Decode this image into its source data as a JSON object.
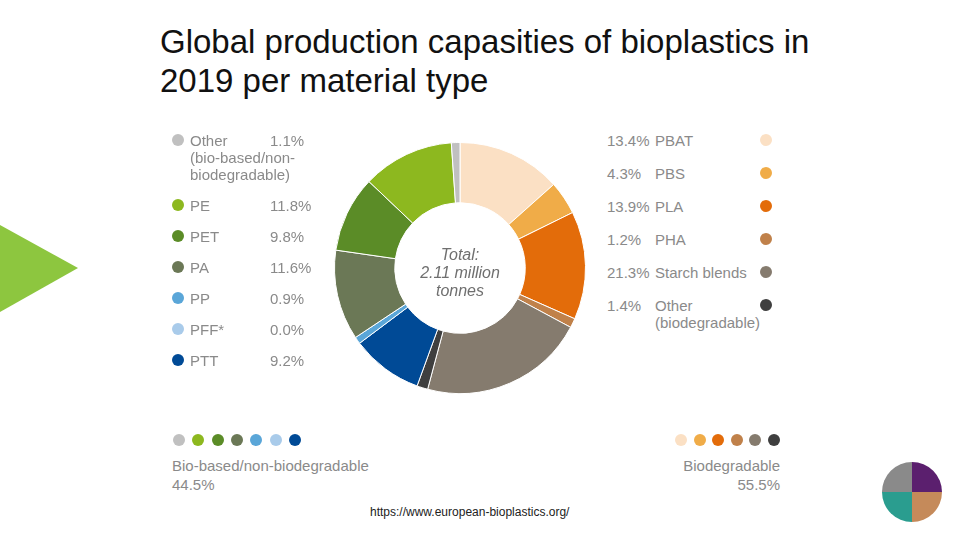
{
  "chart_data": {
    "type": "doughnut",
    "title": "Global production capasities of bioplastics in 2019 per material type",
    "categories": [
      "PBAT",
      "PBS",
      "PLA",
      "PHA",
      "Starch blends",
      "Other (biodegradable)",
      "PTT",
      "PFF*",
      "PP",
      "PA",
      "PET",
      "PE",
      "Other (bio-based/non-biodegradable)"
    ],
    "values": [
      13.4,
      4.3,
      13.9,
      1.2,
      21.3,
      1.4,
      9.2,
      0.0,
      0.9,
      11.6,
      9.8,
      11.8,
      1.1
    ],
    "value_labels": [
      "13.4%",
      "4.3%",
      "13.9%",
      "1.2%",
      "21.3%",
      "1.4%",
      "9.2%",
      "0.0%",
      "0.9%",
      "11.6%",
      "9.8%",
      "11.8%",
      "1.1%"
    ],
    "colors": [
      "#fbe0c4",
      "#f0ac48",
      "#e36c0a",
      "#c0814a",
      "#857b6e",
      "#3f3f3f",
      "#004a96",
      "#a9cbea",
      "#5aa6d8",
      "#6b7856",
      "#5b8c27",
      "#8db81f",
      "#c0c0c0"
    ],
    "center_text": [
      "Total:",
      "2.11 million tonnes"
    ],
    "groups": [
      {
        "name": "Bio-based/non-biodegradable",
        "value": 44.5,
        "value_label": "44.5%",
        "categories": [
          "Other (bio-based/non-biodegradable)",
          "PE",
          "PET",
          "PA",
          "PP",
          "PFF*",
          "PTT"
        ]
      },
      {
        "name": "Biodegradable",
        "value": 55.5,
        "value_label": "55.5%",
        "categories": [
          "PBAT",
          "PBS",
          "PLA",
          "PHA",
          "Starch blends",
          "Other (biodegradable)"
        ]
      }
    ],
    "source": "https://www.european-bioplastics.org/"
  }
}
